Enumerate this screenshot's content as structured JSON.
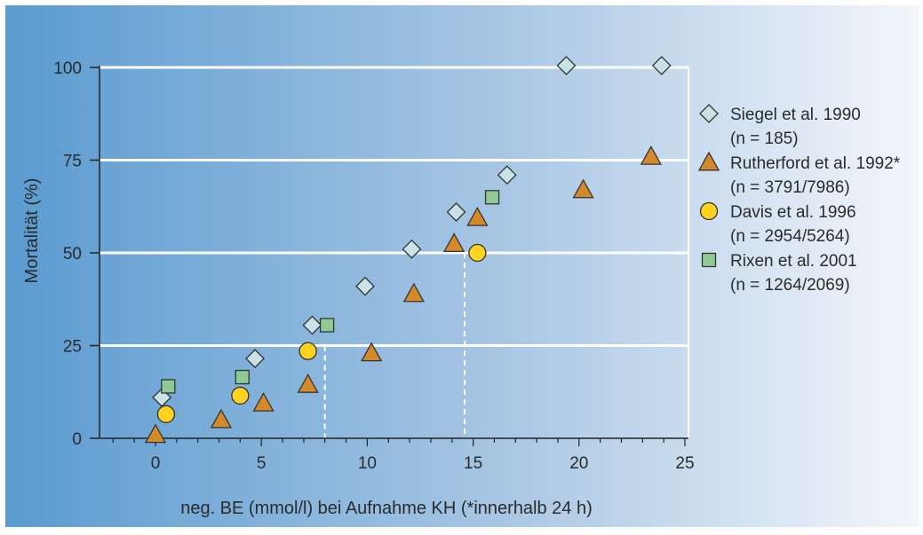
{
  "chart_data": {
    "type": "scatter",
    "title": "",
    "xlabel": "neg. BE (mmol/l) bei Aufnahme KH (*innerhalb 24 h)",
    "ylabel": "Mortalität (%)",
    "xlim": [
      -2.5,
      25
    ],
    "ylim": [
      0,
      100
    ],
    "x_ticks": [
      0,
      5,
      10,
      15,
      20,
      25
    ],
    "y_ticks": [
      0,
      25,
      50,
      75,
      100
    ],
    "grid": "horizontal",
    "legend_position": "right",
    "reference_lines": [
      {
        "x": 8,
        "y": 25
      },
      {
        "x": 14.6,
        "y": 50
      }
    ],
    "series": [
      {
        "name": "Siegel et al. 1990",
        "n": "(n = 185)",
        "marker": "diamond",
        "color": "#c8e2e5",
        "points": [
          [
            0.3,
            11
          ],
          [
            4.7,
            21.5
          ],
          [
            7.4,
            30.5
          ],
          [
            9.9,
            41
          ],
          [
            12.1,
            51
          ],
          [
            14.2,
            61
          ],
          [
            16.6,
            71
          ],
          [
            19.4,
            100.5
          ],
          [
            23.9,
            100.5
          ]
        ]
      },
      {
        "name": "Rutherford et al. 1992*",
        "n": "(n = 3791/7986)",
        "marker": "triangle",
        "color": "#d48a2a",
        "points": [
          [
            0,
            1
          ],
          [
            3.1,
            5
          ],
          [
            5.1,
            9.5
          ],
          [
            7.2,
            14.5
          ],
          [
            10.2,
            23
          ],
          [
            12.2,
            39
          ],
          [
            14.1,
            52.5
          ],
          [
            15.2,
            59.5
          ],
          [
            20.2,
            67
          ],
          [
            23.4,
            76
          ]
        ]
      },
      {
        "name": "Davis et al. 1996",
        "n": "(n = 2954/5264)",
        "marker": "circle",
        "color": "#ffd21f",
        "points": [
          [
            0.5,
            6.5
          ],
          [
            4,
            11.5
          ],
          [
            7.2,
            23.5
          ],
          [
            15.2,
            50
          ]
        ]
      },
      {
        "name": "Rixen et al. 2001",
        "n": "(n = 1264/2069)",
        "marker": "square",
        "color": "#8fca96",
        "points": [
          [
            0.6,
            14
          ],
          [
            4.1,
            16.5
          ],
          [
            8.1,
            30.5
          ],
          [
            15.9,
            65
          ]
        ]
      }
    ]
  },
  "colors": {
    "background_left": "#5a9bd0",
    "background_right": "#f3f6fb",
    "grid": "#ffffff",
    "axis": "#222222",
    "reference": "#ffffff"
  }
}
